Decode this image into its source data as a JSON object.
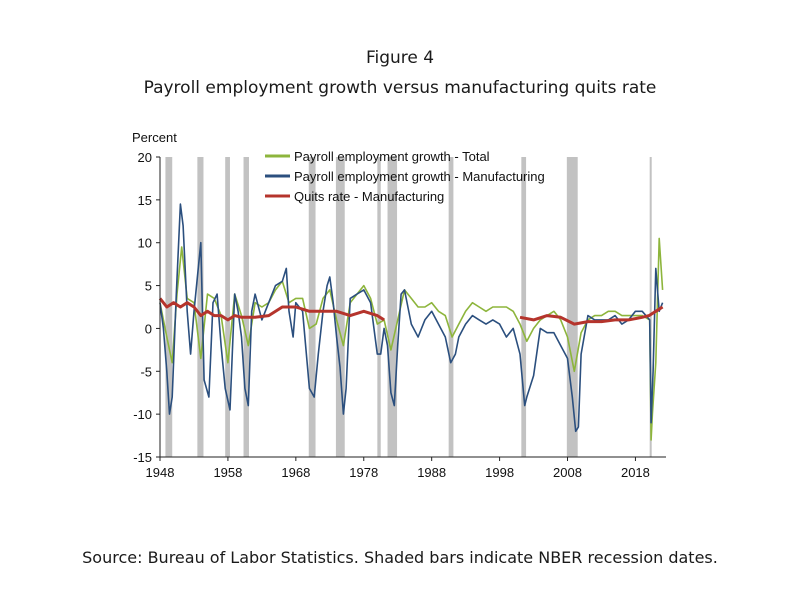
{
  "figure": {
    "label": "Figure 4",
    "title": "Payroll employment growth versus manufacturing quits rate",
    "source": "Source: Bureau of Labor Statistics. Shaded bars indicate NBER recession dates."
  },
  "chart_data": {
    "type": "line",
    "title": "Payroll employment growth versus manufacturing quits rate",
    "ylabel": "Percent",
    "xlabel": "",
    "xlim": [
      1948,
      2022.5
    ],
    "ylim": [
      -15,
      20
    ],
    "yticks": [
      20,
      15,
      10,
      5,
      0,
      -5,
      -10,
      -15
    ],
    "xticks": [
      1948,
      1958,
      1968,
      1978,
      1988,
      1998,
      2008,
      2018
    ],
    "grid": false,
    "legend_position": "top",
    "recessions": [
      [
        1948.8,
        1949.8
      ],
      [
        1953.5,
        1954.4
      ],
      [
        1957.6,
        1958.3
      ],
      [
        1960.3,
        1961.1
      ],
      [
        1969.9,
        1970.9
      ],
      [
        1973.9,
        1975.2
      ],
      [
        1980.0,
        1980.5
      ],
      [
        1981.5,
        1982.9
      ],
      [
        1990.5,
        1991.2
      ],
      [
        2001.2,
        2001.9
      ],
      [
        2007.9,
        2009.5
      ],
      [
        2020.1,
        2020.3
      ]
    ],
    "series": [
      {
        "name": "Payroll employment growth - Total",
        "color": "#8db53c",
        "x": [
          1948,
          1949,
          1949.8,
          1950.5,
          1951.2,
          1952,
          1953,
          1954,
          1955,
          1956,
          1957,
          1958,
          1959,
          1960,
          1961,
          1962,
          1963,
          1964,
          1965,
          1966,
          1967,
          1968,
          1969,
          1970,
          1971,
          1972,
          1973,
          1974,
          1975,
          1976,
          1977,
          1978,
          1979,
          1980,
          1981,
          1982,
          1983,
          1984,
          1985,
          1986,
          1987,
          1988,
          1989,
          1990,
          1991,
          1992,
          1993,
          1994,
          1995,
          1996,
          1997,
          1998,
          1999,
          2000,
          2001,
          2002,
          2003,
          2004,
          2005,
          2006,
          2007,
          2008,
          2009,
          2010,
          2011,
          2012,
          2013,
          2014,
          2015,
          2016,
          2017,
          2018,
          2019,
          2020.1,
          2020.3,
          2020.5,
          2021,
          2021.5,
          2022
        ],
        "values": [
          3.0,
          -1.0,
          -4.0,
          4.0,
          9.5,
          3.5,
          3.0,
          -3.5,
          4.0,
          3.5,
          1.5,
          -4.0,
          4.0,
          1.5,
          -2.0,
          3.0,
          2.5,
          3.0,
          4.5,
          5.5,
          3.0,
          3.5,
          3.5,
          0.0,
          0.5,
          3.5,
          4.5,
          1.0,
          -2.0,
          3.0,
          4.0,
          5.0,
          3.5,
          0.5,
          1.0,
          -2.5,
          1.0,
          4.5,
          3.5,
          2.5,
          2.5,
          3.0,
          2.0,
          1.5,
          -1.0,
          0.5,
          2.0,
          3.0,
          2.5,
          2.0,
          2.5,
          2.5,
          2.5,
          2.0,
          0.5,
          -1.5,
          0.0,
          1.0,
          1.5,
          2.0,
          1.0,
          -1.0,
          -5.0,
          -0.5,
          1.0,
          1.5,
          1.5,
          2.0,
          2.0,
          1.5,
          1.5,
          1.5,
          1.5,
          1.0,
          -13.0,
          -10.0,
          -4.0,
          10.5,
          4.5
        ]
      },
      {
        "name": "Payroll employment growth - Manufacturing",
        "color": "#2b4f7e",
        "x": [
          1948,
          1948.5,
          1949,
          1949.4,
          1949.8,
          1950.4,
          1951,
          1951.4,
          1952,
          1952.5,
          1953,
          1953.5,
          1954,
          1954.5,
          1955.2,
          1955.8,
          1956.4,
          1957,
          1957.6,
          1958.3,
          1959,
          1959.5,
          1960,
          1960.5,
          1961,
          1961.5,
          1962,
          1963,
          1964,
          1965,
          1966,
          1966.6,
          1967,
          1967.6,
          1968,
          1969,
          1970,
          1970.7,
          1971.3,
          1972,
          1972.6,
          1973,
          1973.5,
          1974,
          1974.5,
          1975,
          1975.4,
          1976,
          1977,
          1978,
          1979,
          1980,
          1980.5,
          1981,
          1981.5,
          1982,
          1982.5,
          1983,
          1983.5,
          1984,
          1985,
          1986,
          1987,
          1988,
          1989,
          1990,
          1990.8,
          1991.5,
          1992,
          1993,
          1994,
          1995,
          1996,
          1997,
          1998,
          1999,
          2000,
          2001,
          2001.7,
          2002,
          2003,
          2004,
          2005,
          2006,
          2007,
          2008,
          2008.7,
          2009.2,
          2009.6,
          2010,
          2011,
          2012,
          2013,
          2014,
          2015,
          2016,
          2017,
          2018,
          2019,
          2020.1,
          2020.3,
          2020.6,
          2021,
          2021.5,
          2022
        ],
        "values": [
          3.0,
          0.0,
          -5.0,
          -10.0,
          -8.0,
          4.0,
          14.5,
          12.0,
          2.0,
          -3.0,
          2.0,
          6.0,
          10.0,
          -6.0,
          -8.0,
          3.0,
          4.0,
          -2.0,
          -7.0,
          -9.5,
          4.0,
          2.0,
          -1.0,
          -7.0,
          -9.0,
          2.0,
          4.0,
          1.0,
          3.0,
          5.0,
          5.5,
          7.0,
          2.0,
          -1.0,
          3.0,
          2.0,
          -7.0,
          -8.0,
          -3.0,
          2.0,
          5.0,
          6.0,
          3.0,
          -1.0,
          -4.5,
          -10.0,
          -7.0,
          3.5,
          4.0,
          4.5,
          3.0,
          -3.0,
          -3.0,
          0.0,
          -2.0,
          -7.5,
          -9.0,
          -2.0,
          4.0,
          4.5,
          0.5,
          -1.0,
          1.0,
          2.0,
          0.5,
          -1.0,
          -4.0,
          -3.0,
          -1.0,
          0.5,
          1.5,
          1.0,
          0.5,
          1.0,
          0.5,
          -1.0,
          0.0,
          -3.0,
          -9.0,
          -8.0,
          -5.5,
          0.0,
          -0.5,
          -0.5,
          -2.0,
          -3.5,
          -8.0,
          -12.0,
          -11.5,
          -3.0,
          1.5,
          1.0,
          1.0,
          1.0,
          1.5,
          0.5,
          1.0,
          2.0,
          2.0,
          1.0,
          -11.0,
          -5.0,
          7.0,
          2.0,
          3.0
        ]
      },
      {
        "name": "Quits rate - Manufacturing",
        "color": "#b5342c",
        "x": [
          1948,
          1949,
          1950,
          1951,
          1952,
          1953,
          1954,
          1955,
          1956,
          1957,
          1958,
          1959,
          1960,
          1962,
          1964,
          1966,
          1968,
          1970,
          1972,
          1974,
          1976,
          1978,
          1980,
          1981,
          null,
          2001,
          2003,
          2005,
          2007,
          2009,
          2011,
          2013,
          2015,
          2017,
          2019,
          2020,
          2021,
          2022
        ],
        "values": [
          3.5,
          2.5,
          3.0,
          2.5,
          3.0,
          2.5,
          1.5,
          2.0,
          1.5,
          1.5,
          1.0,
          1.5,
          1.3,
          1.3,
          1.5,
          2.5,
          2.5,
          2.0,
          2.0,
          2.0,
          1.5,
          2.0,
          1.5,
          1.0,
          null,
          1.3,
          1.0,
          1.5,
          1.3,
          0.5,
          0.8,
          0.8,
          1.0,
          1.0,
          1.3,
          1.5,
          2.0,
          2.5
        ]
      }
    ]
  }
}
